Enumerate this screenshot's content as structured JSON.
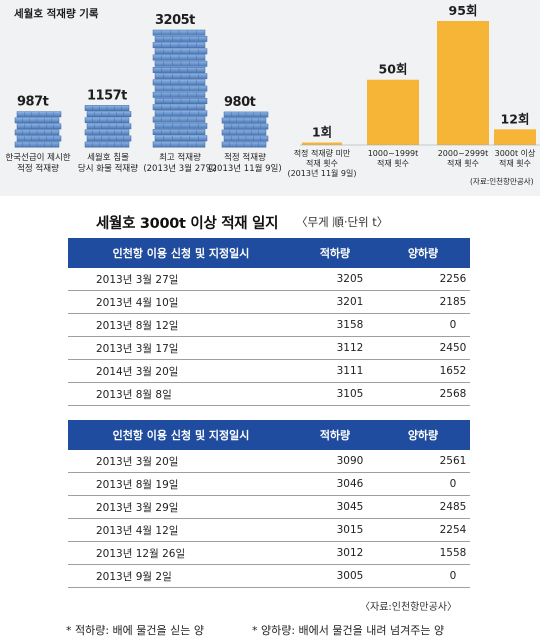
{
  "top_panel": {
    "title": "세월호 적재량 기록",
    "source": "(자료:인천항만공사)"
  },
  "chart_data": [
    {
      "type": "bar",
      "title": "세월호 적재량 기록",
      "categories": [
        [
          "한국선급이 제시한",
          "적정 적재량"
        ],
        [
          "세월호 침몰",
          "당시 화물 적재량"
        ],
        [
          "최고 적재량",
          "(2013년 3월 27일)"
        ],
        [
          "적정 적재량",
          "(2013년 11월 9일)"
        ]
      ],
      "value_labels": [
        "987t",
        "1157t",
        "3205t",
        "980t"
      ],
      "values": [
        987,
        1157,
        3205,
        980
      ],
      "unit": "t"
    },
    {
      "type": "bar",
      "categories": [
        [
          "적정 적재량 미만",
          "적재 횟수",
          "(2013년 11월 9일)"
        ],
        [
          "1000~1999t",
          "적재 횟수"
        ],
        [
          "2000~2999t",
          "적재 횟수"
        ],
        [
          "3000t 이상",
          "적재 횟수"
        ]
      ],
      "value_labels": [
        "1회",
        "50회",
        "95회",
        "12회"
      ],
      "values": [
        1,
        50,
        95,
        12
      ],
      "unit": "회",
      "ylim": [
        0,
        95
      ],
      "color": "#f7b538"
    },
    {
      "type": "table",
      "title": "세월호 3000t 이상 적재 일지",
      "subtitle": "〈무게 順·단위 t〉",
      "columns": [
        "인천항 이용 신청 및 지정일시",
        "적하량",
        "양하량"
      ],
      "rows": [
        [
          "2013년 3월 27일",
          "3205",
          "2256"
        ],
        [
          "2013년 4월 10일",
          "3201",
          "2185"
        ],
        [
          "2013년 8월 12일",
          "3158",
          "0"
        ],
        [
          "2013년 3월 17일",
          "3112",
          "2450"
        ],
        [
          "2014년 3월 20일",
          "3111",
          "1652"
        ],
        [
          "2013년 8월 8일",
          "3105",
          "2568"
        ]
      ]
    },
    {
      "type": "table",
      "columns": [
        "인천항 이용 신청 및 지정일시",
        "적하량",
        "양하량"
      ],
      "rows": [
        [
          "2013년 3월 20일",
          "3090",
          "2561"
        ],
        [
          "2013년 8월 19일",
          "3046",
          "0"
        ],
        [
          "2013년 3월 29일",
          "3045",
          "2485"
        ],
        [
          "2013년 4월 12일",
          "3015",
          "2254"
        ],
        [
          "2013년 12월 26일",
          "3012",
          "1558"
        ],
        [
          "2013년 9월 2일",
          "3005",
          "0"
        ]
      ],
      "source": "〈자료:인천항만공사〉"
    }
  ],
  "footnotes": [
    "* 적하량: 배에 물건을 싣는 양",
    "* 양하량: 배에서 물건을 내려 넘겨주는 양"
  ],
  "colors": {
    "container": "#5b89c6",
    "orange_bar": "#f7b538",
    "table_header": "#1f4c9e"
  }
}
